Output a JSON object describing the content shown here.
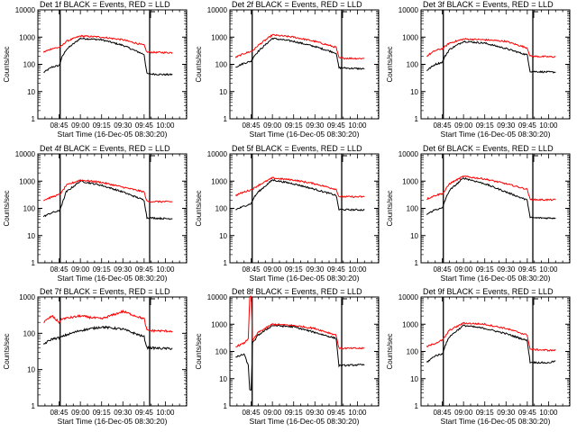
{
  "colors": {
    "events": "#000000",
    "lld": "#ff0000",
    "axis": "#000000",
    "background": "#ffffff"
  },
  "shared": {
    "ylabel": "Counts/sec",
    "xlabel": "Start Time (16-Dec-05 08:30:20)",
    "x_ticks": [
      "08:45",
      "09:00",
      "09:15",
      "09:30",
      "09:45",
      "10:00"
    ],
    "y_ticks": [
      "1",
      "10",
      "100",
      "1000",
      "10000"
    ]
  },
  "chart_data": [
    {
      "type": "line",
      "title": "Det 1f BLACK = Events, RED = LLD",
      "ylim": [
        1,
        10000
      ],
      "yscale": "log",
      "xlabel": "Start Time (16-Dec-05 08:30:20)",
      "ylabel": "Counts/sec",
      "series": [
        {
          "name": "Events",
          "color": "#000000",
          "x": [
            "08:34",
            "08:40",
            "08:45",
            "08:47",
            "08:50",
            "09:00",
            "09:15",
            "09:30",
            "09:45",
            "09:47",
            "10:00",
            "10:05"
          ],
          "values": [
            50,
            80,
            90,
            180,
            350,
            900,
            800,
            500,
            230,
            45,
            42,
            42
          ]
        },
        {
          "name": "LLD",
          "color": "#ff0000",
          "x": [
            "08:34",
            "08:40",
            "08:45",
            "08:47",
            "08:50",
            "09:00",
            "09:15",
            "09:30",
            "09:45",
            "09:47",
            "10:00",
            "10:05"
          ],
          "values": [
            280,
            380,
            420,
            480,
            700,
            1100,
            1000,
            800,
            500,
            280,
            270,
            270
          ]
        }
      ]
    },
    {
      "type": "line",
      "title": "Det 2f BLACK = Events, RED = LLD",
      "ylim": [
        1,
        10000
      ],
      "yscale": "log",
      "xlabel": "Start Time (16-Dec-05 08:30:20)",
      "ylabel": "Counts/sec",
      "series": [
        {
          "name": "Events",
          "color": "#000000",
          "x": [
            "08:34",
            "08:40",
            "08:45",
            "08:47",
            "08:50",
            "09:00",
            "09:15",
            "09:30",
            "09:45",
            "09:47",
            "10:00",
            "10:05"
          ],
          "values": [
            80,
            110,
            130,
            200,
            300,
            900,
            700,
            450,
            260,
            75,
            70,
            68
          ]
        },
        {
          "name": "LLD",
          "color": "#ff0000",
          "x": [
            "08:34",
            "08:40",
            "08:45",
            "08:47",
            "08:50",
            "09:00",
            "09:15",
            "09:30",
            "09:45",
            "09:47",
            "10:00",
            "10:05"
          ],
          "values": [
            180,
            250,
            300,
            350,
            500,
            1200,
            1000,
            700,
            420,
            170,
            165,
            165
          ]
        }
      ]
    },
    {
      "type": "line",
      "title": "Det 3f BLACK = Events, RED = LLD",
      "ylim": [
        1,
        10000
      ],
      "yscale": "log",
      "xlabel": "Start Time (16-Dec-05 08:30:20)",
      "ylabel": "Counts/sec",
      "series": [
        {
          "name": "Events",
          "color": "#000000",
          "x": [
            "08:34",
            "08:40",
            "08:45",
            "08:47",
            "08:50",
            "09:00",
            "09:15",
            "09:30",
            "09:45",
            "09:47",
            "10:00",
            "10:05"
          ],
          "values": [
            60,
            100,
            120,
            200,
            350,
            700,
            600,
            380,
            220,
            55,
            52,
            52
          ]
        },
        {
          "name": "LLD",
          "color": "#ff0000",
          "x": [
            "08:34",
            "08:40",
            "08:45",
            "08:47",
            "08:50",
            "09:00",
            "09:15",
            "09:30",
            "09:45",
            "09:47",
            "10:00",
            "10:05"
          ],
          "values": [
            200,
            320,
            380,
            450,
            600,
            850,
            800,
            700,
            400,
            200,
            190,
            190
          ]
        }
      ]
    },
    {
      "type": "line",
      "title": "Det 4f BLACK = Events, RED = LLD",
      "ylim": [
        1,
        10000
      ],
      "yscale": "log",
      "xlabel": "Start Time (16-Dec-05 08:30:20)",
      "ylabel": "Counts/sec",
      "series": [
        {
          "name": "Events",
          "color": "#000000",
          "x": [
            "08:34",
            "08:40",
            "08:45",
            "08:47",
            "08:50",
            "09:00",
            "09:15",
            "09:30",
            "09:45",
            "09:47",
            "10:00",
            "10:05"
          ],
          "values": [
            50,
            70,
            80,
            140,
            400,
            1000,
            700,
            400,
            200,
            45,
            42,
            42
          ]
        },
        {
          "name": "LLD",
          "color": "#ff0000",
          "x": [
            "08:34",
            "08:40",
            "08:45",
            "08:47",
            "08:50",
            "09:00",
            "09:15",
            "09:30",
            "09:45",
            "09:47",
            "10:00",
            "10:05"
          ],
          "values": [
            200,
            260,
            320,
            400,
            700,
            1100,
            900,
            600,
            400,
            180,
            175,
            175
          ]
        }
      ]
    },
    {
      "type": "line",
      "title": "Det 5f BLACK = Events, RED = LLD",
      "ylim": [
        1,
        10000
      ],
      "yscale": "log",
      "xlabel": "Start Time (16-Dec-05 08:30:20)",
      "ylabel": "Counts/sec",
      "series": [
        {
          "name": "Events",
          "color": "#000000",
          "x": [
            "08:34",
            "08:40",
            "08:45",
            "08:47",
            "08:50",
            "09:00",
            "09:15",
            "09:30",
            "09:45",
            "09:47",
            "10:00",
            "10:05"
          ],
          "values": [
            90,
            120,
            150,
            250,
            400,
            1100,
            800,
            500,
            300,
            90,
            88,
            88
          ]
        },
        {
          "name": "LLD",
          "color": "#ff0000",
          "x": [
            "08:34",
            "08:40",
            "08:45",
            "08:47",
            "08:50",
            "09:00",
            "09:15",
            "09:30",
            "09:45",
            "09:47",
            "10:00",
            "10:05"
          ],
          "values": [
            300,
            400,
            480,
            550,
            700,
            1300,
            1100,
            800,
            500,
            270,
            265,
            265
          ]
        }
      ]
    },
    {
      "type": "line",
      "title": "Det 6f BLACK = Events, RED = LLD",
      "ylim": [
        1,
        10000
      ],
      "yscale": "log",
      "xlabel": "Start Time (16-Dec-05 08:30:20)",
      "ylabel": "Counts/sec",
      "series": [
        {
          "name": "Events",
          "color": "#000000",
          "x": [
            "08:34",
            "08:40",
            "08:45",
            "08:47",
            "08:50",
            "09:00",
            "09:15",
            "09:30",
            "09:45",
            "09:47",
            "10:00",
            "10:05"
          ],
          "values": [
            60,
            90,
            100,
            200,
            450,
            1300,
            800,
            400,
            200,
            45,
            44,
            44
          ]
        },
        {
          "name": "LLD",
          "color": "#ff0000",
          "x": [
            "08:34",
            "08:40",
            "08:45",
            "08:47",
            "08:50",
            "09:00",
            "09:15",
            "09:30",
            "09:45",
            "09:47",
            "10:00",
            "10:05"
          ],
          "values": [
            220,
            300,
            350,
            450,
            800,
            1500,
            1200,
            800,
            500,
            210,
            205,
            205
          ]
        }
      ]
    },
    {
      "type": "line",
      "title": "Det 7f BLACK = Events, RED = LLD",
      "ylim": [
        1,
        1000
      ],
      "yscale": "log",
      "xlabel": "Start Time (16-Dec-05 08:30:20)",
      "ylabel": "Counts/sec",
      "y_ticks": [
        "1",
        "10",
        "100",
        "1000"
      ],
      "series": [
        {
          "name": "Events",
          "color": "#000000",
          "x": [
            "08:34",
            "08:40",
            "08:45",
            "08:47",
            "08:50",
            "09:00",
            "09:15",
            "09:30",
            "09:45",
            "09:47",
            "10:00",
            "10:05"
          ],
          "values": [
            50,
            70,
            75,
            80,
            90,
            120,
            150,
            130,
            80,
            40,
            38,
            38
          ]
        },
        {
          "name": "LLD",
          "color": "#ff0000",
          "x": [
            "08:34",
            "08:40",
            "08:45",
            "08:47",
            "08:50",
            "09:00",
            "09:15",
            "09:30",
            "09:45",
            "09:47",
            "10:00",
            "10:05"
          ],
          "values": [
            200,
            300,
            200,
            250,
            260,
            300,
            250,
            400,
            250,
            120,
            115,
            115
          ]
        }
      ]
    },
    {
      "type": "line",
      "title": "Det 8f BLACK = Events, RED = LLD",
      "ylim": [
        1,
        10000
      ],
      "yscale": "log",
      "xlabel": "Start Time (16-Dec-05 08:30:20)",
      "ylabel": "Counts/sec",
      "series": [
        {
          "name": "Events",
          "color": "#000000",
          "x": [
            "08:34",
            "08:40",
            "08:43",
            "08:44",
            "08:45",
            "08:46",
            "08:50",
            "09:00",
            "09:15",
            "09:30",
            "09:45",
            "09:47",
            "10:00",
            "10:05"
          ],
          "values": [
            60,
            80,
            30,
            4,
            4,
            200,
            400,
            900,
            800,
            500,
            300,
            30,
            32,
            32
          ]
        },
        {
          "name": "LLD",
          "color": "#ff0000",
          "x": [
            "08:34",
            "08:40",
            "08:43",
            "08:44",
            "08:45",
            "08:46",
            "08:50",
            "09:00",
            "09:15",
            "09:30",
            "09:45",
            "09:47",
            "10:00",
            "10:05"
          ],
          "values": [
            150,
            200,
            300,
            10000,
            10000,
            250,
            500,
            1000,
            900,
            700,
            400,
            130,
            130,
            130
          ]
        }
      ]
    },
    {
      "type": "line",
      "title": "Det 9f BLACK = Events, RED = LLD",
      "ylim": [
        1,
        10000
      ],
      "yscale": "log",
      "xlabel": "Start Time (16-Dec-05 08:30:20)",
      "ylabel": "Counts/sec",
      "series": [
        {
          "name": "Events",
          "color": "#000000",
          "x": [
            "08:34",
            "08:40",
            "08:45",
            "08:47",
            "08:50",
            "09:00",
            "09:15",
            "09:30",
            "09:45",
            "09:47",
            "10:00",
            "10:05"
          ],
          "values": [
            40,
            70,
            80,
            160,
            350,
            900,
            700,
            450,
            250,
            40,
            38,
            45
          ]
        },
        {
          "name": "LLD",
          "color": "#ff0000",
          "x": [
            "08:34",
            "08:40",
            "08:45",
            "08:47",
            "08:50",
            "09:00",
            "09:15",
            "09:30",
            "09:45",
            "09:47",
            "10:00",
            "10:05"
          ],
          "values": [
            150,
            200,
            260,
            350,
            600,
            1100,
            1000,
            700,
            400,
            120,
            110,
            110
          ]
        }
      ]
    }
  ]
}
